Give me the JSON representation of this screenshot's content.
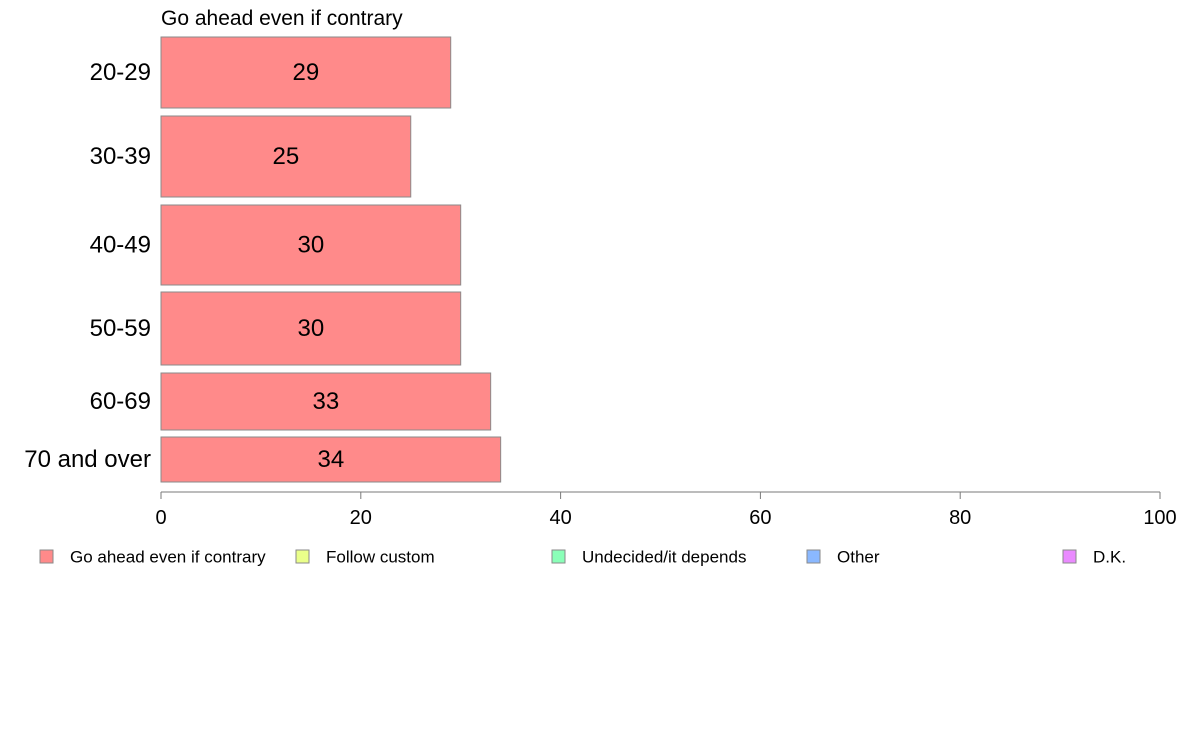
{
  "chart_data": {
    "type": "bar",
    "orientation": "horizontal",
    "title": "Go ahead even if contrary",
    "categories": [
      "20-29",
      "30-39",
      "40-49",
      "50-59",
      "60-69",
      "70 and over"
    ],
    "series": [
      {
        "name": "Go ahead even if contrary",
        "color": "#ff8a8a",
        "values": [
          29,
          25,
          30,
          30,
          33,
          34
        ]
      }
    ],
    "xlim": [
      0,
      100
    ],
    "xticks": [
      0,
      20,
      40,
      60,
      80,
      100
    ],
    "grid": false,
    "legend_position": "bottom",
    "legend": [
      {
        "label": "Go ahead even if contrary",
        "color": "#ff8a8a"
      },
      {
        "label": "Follow custom",
        "color": "#eaff8a"
      },
      {
        "label": "Undecided/it depends",
        "color": "#8affb8"
      },
      {
        "label": "Other",
        "color": "#8ab8ff"
      },
      {
        "label": "D.K.",
        "color": "#ea8aff"
      }
    ]
  }
}
